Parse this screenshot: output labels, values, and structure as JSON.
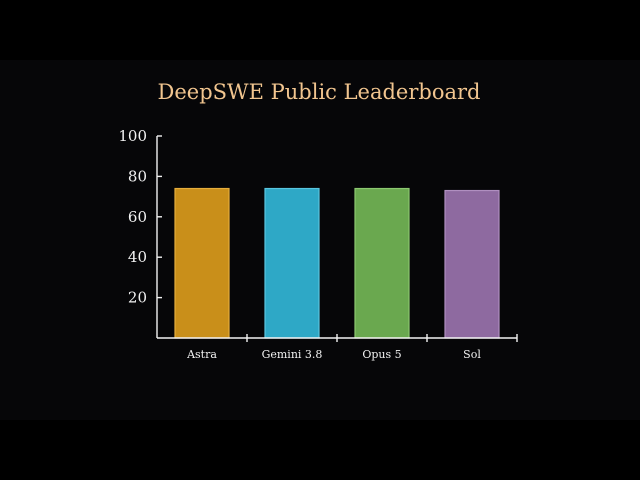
{
  "colors": {
    "background": "#060608",
    "axis": "#f2f2f2",
    "title": "#f1c58f"
  },
  "chart_data": {
    "type": "bar",
    "title": "DeepSWE Public Leaderboard",
    "xlabel": "",
    "ylabel": "",
    "categories": [
      "Astra",
      "Gemini 3.8",
      "Opus 5",
      "Sol"
    ],
    "values": [
      74,
      74,
      74,
      73
    ],
    "bar_colors": [
      "#c98f1a",
      "#2ea8c6",
      "#6aa84f",
      "#8e6aa0"
    ],
    "bar_edge_colors": [
      "#e6ad3c",
      "#59c6e0",
      "#8cc870",
      "#b08fc0"
    ],
    "ylim": [
      0,
      100
    ],
    "yticks": [
      20,
      40,
      60,
      80,
      100
    ],
    "grid": false
  }
}
